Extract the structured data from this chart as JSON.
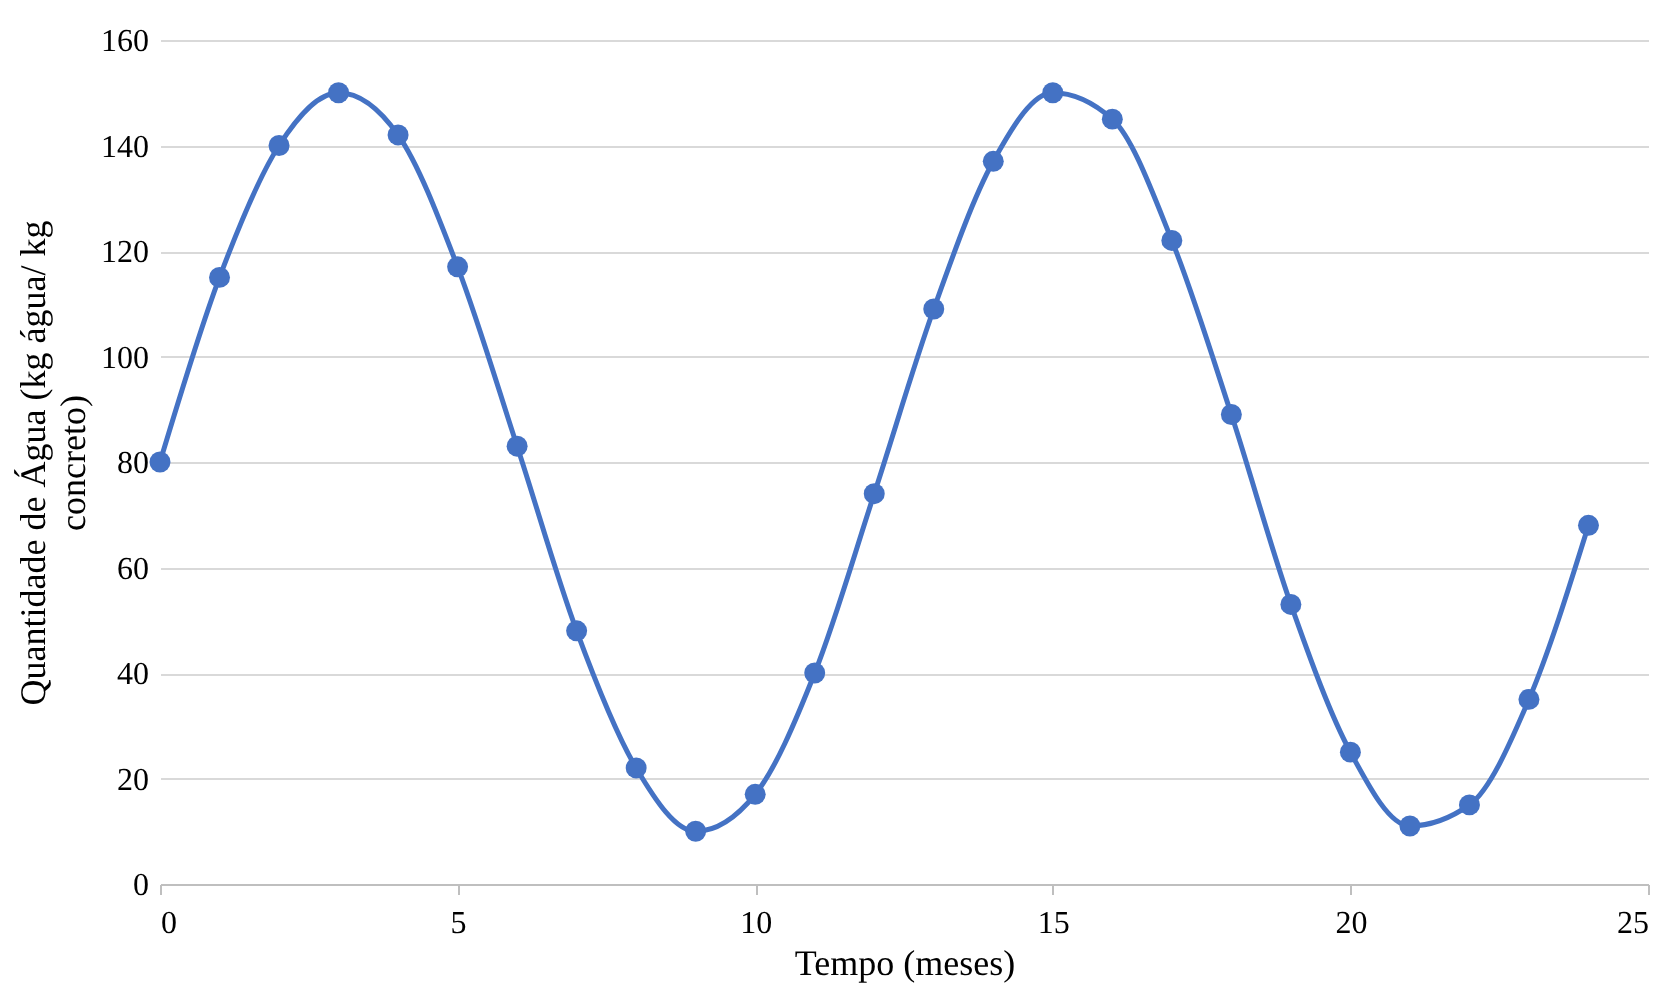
{
  "chart_data": {
    "type": "line",
    "xlabel": "Tempo (meses)",
    "ylabel": "Quantidade de Água (kg água/ kg concreto)",
    "x": [
      0,
      1,
      2,
      3,
      4,
      5,
      6,
      7,
      8,
      9,
      10,
      11,
      12,
      13,
      14,
      15,
      16,
      17,
      18,
      19,
      20,
      21,
      22,
      23,
      24
    ],
    "series": [
      {
        "color": "#4472c4",
        "values": [
          80,
          115,
          140,
          150,
          142,
          117,
          83,
          48,
          22,
          10,
          17,
          40,
          74,
          109,
          137,
          150,
          145,
          122,
          89,
          53,
          25,
          11,
          15,
          35,
          68
        ]
      }
    ],
    "xlim": [
      0,
      25
    ],
    "xticks": [
      0,
      5,
      10,
      15,
      20,
      25
    ],
    "ylim": [
      0,
      160
    ],
    "yticks": [
      0,
      20,
      40,
      60,
      80,
      100,
      120,
      140,
      160
    ],
    "grid": "y",
    "marker": "circle",
    "line_style": "solid"
  }
}
